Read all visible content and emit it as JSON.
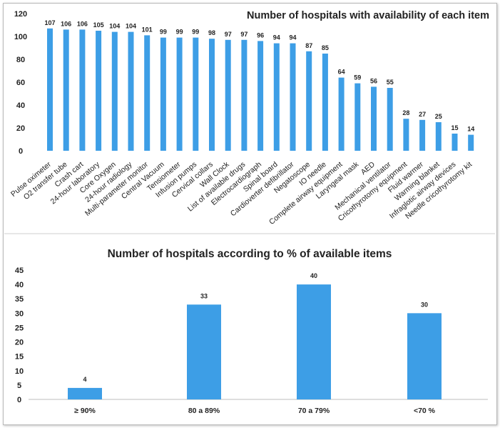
{
  "chart_data": [
    {
      "type": "bar",
      "title": "Number of hospitals with availability of each item",
      "categories": [
        "Pulse oximeter",
        "O2 transfer tube",
        "Crash cart",
        "24-hour laboratory",
        "Core Oxygen",
        "24-hour radiology",
        "Multi-parameter monitor",
        "Central Vacuum",
        "Tensiometer",
        "Infusion pumps",
        "Cervical collars",
        "Wall Clock",
        "List of available drugs",
        "Electrocardiograph",
        "Spinal board",
        "Cardioverter defibrillator",
        "Negatoscope",
        "IO needle",
        "Complete airway equipment",
        "Laryngeal mask",
        "AED",
        "Mechanical ventilator",
        "Cricothyrotomy equipment",
        "Fluid warmer",
        "Warming blanket",
        "Infraglotic airway devices",
        "Needle cricothyrotomy kit"
      ],
      "values": [
        107,
        106,
        106,
        105,
        104,
        104,
        101,
        99,
        99,
        99,
        98,
        97,
        97,
        96,
        94,
        94,
        87,
        85,
        64,
        59,
        56,
        55,
        28,
        27,
        25,
        15,
        14
      ],
      "yticks": [
        0,
        20,
        40,
        60,
        80,
        100,
        120
      ],
      "ylim": [
        0,
        120
      ],
      "color": "#3d9ee6"
    },
    {
      "type": "bar",
      "title": "Number of hospitals according to % of available items",
      "categories": [
        "≥ 90%",
        "80 a 89%",
        "70 a 79%",
        "<70 %"
      ],
      "values": [
        4,
        33,
        40,
        30
      ],
      "yticks": [
        0,
        5,
        10,
        15,
        20,
        25,
        30,
        35,
        40,
        45
      ],
      "ylim": [
        0,
        45
      ],
      "color": "#3d9ee6"
    }
  ]
}
